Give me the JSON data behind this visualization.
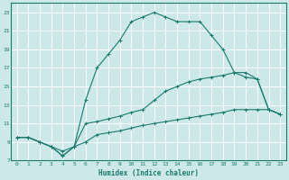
{
  "xlabel": "Humidex (Indice chaleur)",
  "bg_color": "#cce8e8",
  "line_color": "#1a7a6e",
  "xlim": [
    -0.5,
    23.5
  ],
  "ylim": [
    7,
    24
  ],
  "xticks": [
    0,
    1,
    2,
    3,
    4,
    5,
    6,
    7,
    8,
    9,
    10,
    11,
    12,
    13,
    14,
    15,
    16,
    17,
    18,
    19,
    20,
    21,
    22,
    23
  ],
  "yticks": [
    7,
    9,
    11,
    13,
    15,
    17,
    19,
    21,
    23
  ],
  "series1_x": [
    0,
    1,
    2,
    3,
    4,
    5,
    6,
    7,
    8,
    9,
    10,
    11,
    12,
    13,
    14,
    15,
    16,
    17,
    18,
    19,
    20,
    21,
    22,
    23
  ],
  "series1_y": [
    9.5,
    9.5,
    9.0,
    8.5,
    8.0,
    8.5,
    11.0,
    11.2,
    11.5,
    11.8,
    12.2,
    12.5,
    13.5,
    14.5,
    15.0,
    15.5,
    15.8,
    16.0,
    16.2,
    16.5,
    16.0,
    15.8,
    12.5,
    12.0
  ],
  "series2_x": [
    0,
    1,
    2,
    3,
    4,
    5,
    6,
    7,
    8,
    9,
    10,
    11,
    12,
    13,
    14,
    15,
    16,
    17,
    18,
    19,
    20,
    21,
    22,
    23
  ],
  "series2_y": [
    9.5,
    9.5,
    9.0,
    8.5,
    7.5,
    8.5,
    9.0,
    9.8,
    10.0,
    10.2,
    10.5,
    10.8,
    11.0,
    11.2,
    11.4,
    11.6,
    11.8,
    12.0,
    12.2,
    12.5,
    12.5,
    12.5,
    12.5,
    12.0
  ],
  "series3_x": [
    0,
    1,
    2,
    3,
    4,
    5,
    6,
    7,
    8,
    9,
    10,
    11,
    12,
    13,
    14,
    15,
    16,
    17,
    18,
    19,
    20,
    21,
    22,
    23
  ],
  "series3_y": [
    9.5,
    9.5,
    9.0,
    8.5,
    7.5,
    8.5,
    13.5,
    17.0,
    18.5,
    20.0,
    22.0,
    22.5,
    23.0,
    22.5,
    22.0,
    22.0,
    22.0,
    20.5,
    19.0,
    16.5,
    16.5,
    15.8,
    12.5,
    12.0
  ]
}
